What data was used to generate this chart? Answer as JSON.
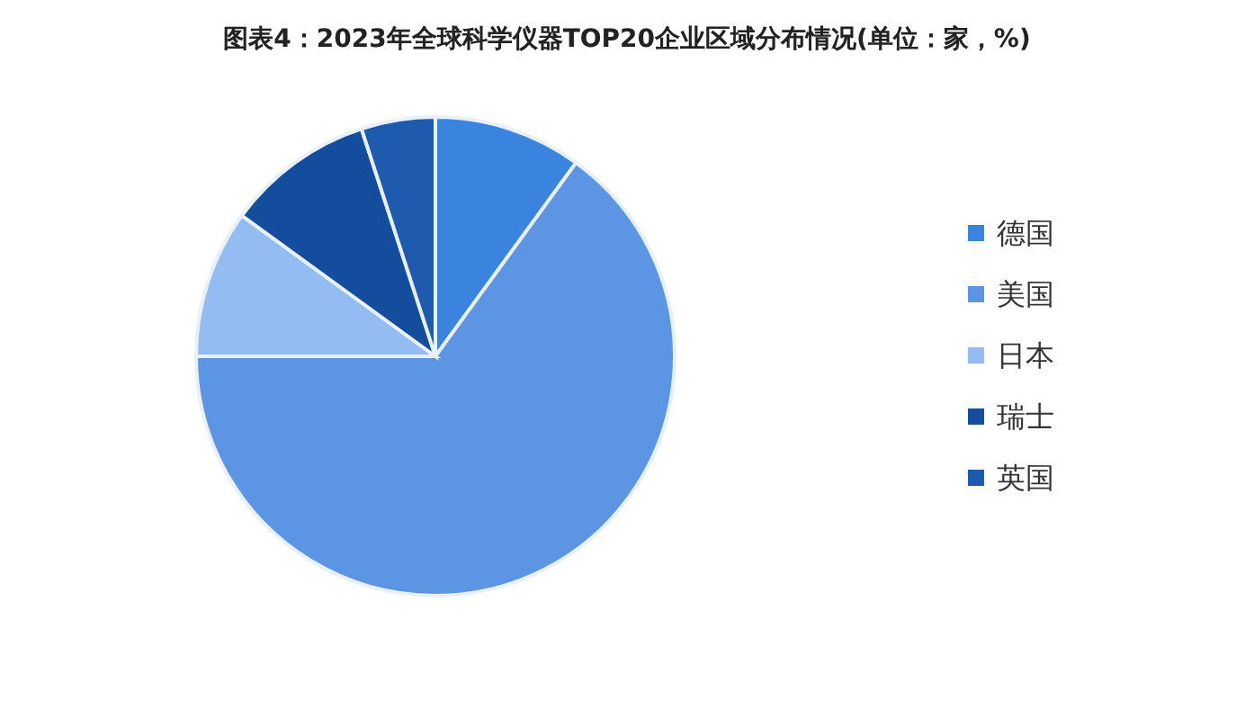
{
  "chart_data": {
    "type": "pie",
    "title": "图表4：2023年全球科学仪器TOP20企业区域分布情况(单位：家，%)",
    "categories": [
      "德国",
      "美国",
      "日本",
      "瑞士",
      "英国"
    ],
    "values": [
      10,
      65,
      10,
      10,
      5
    ],
    "colors": [
      "#3a84e0",
      "#5b95e3",
      "#93bcf3",
      "#154d9e",
      "#1e5aad"
    ],
    "legend": "right"
  }
}
